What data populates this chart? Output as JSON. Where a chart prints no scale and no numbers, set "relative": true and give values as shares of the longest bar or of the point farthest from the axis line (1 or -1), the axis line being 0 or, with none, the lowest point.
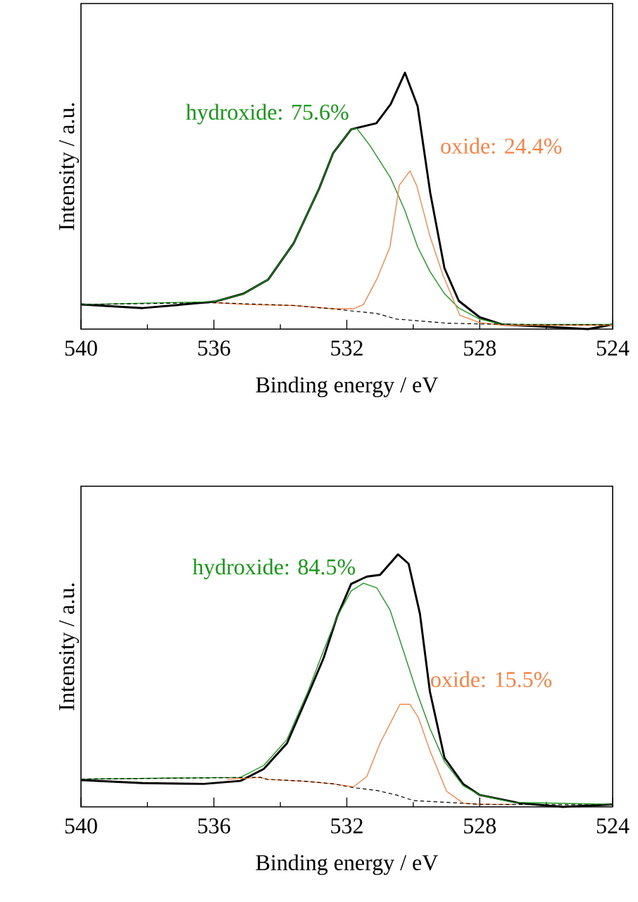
{
  "chart_data": [
    {
      "type": "line",
      "relative": true,
      "xlabel": "Binding energy / eV",
      "ylabel": "Intensity / a.u.",
      "xlim": [
        540,
        524
      ],
      "xticks": [
        540,
        {
          "value": 538,
          "label": null
        },
        536,
        {
          "value": 534,
          "label": null
        },
        532,
        {
          "value": 530,
          "label": null
        },
        528,
        {
          "value": 526,
          "label": null
        },
        524
      ],
      "marker": "none",
      "series": [
        {
          "color": "#000000",
          "line_style": "solid",
          "x": [
            540,
            538.14,
            535.98,
            535.11,
            534.36,
            533.6,
            532.84,
            532.41,
            531.87,
            531.11,
            530.68,
            530.25,
            529.87,
            529.49,
            529.06,
            528.63,
            528.0,
            527.33,
            526.25,
            524.74,
            524
          ],
          "values": [
            0.096,
            0.082,
            0.107,
            0.138,
            0.194,
            0.335,
            0.546,
            0.687,
            0.779,
            0.803,
            0.877,
            1.0,
            0.87,
            0.532,
            0.237,
            0.11,
            0.046,
            0.018,
            0.011,
            0.0,
            0.018
          ]
        },
        {
          "name": "hydroxide: 75.6%",
          "color": "#139a13",
          "line_style": "solid",
          "x": [
            540,
            536.0,
            535.1,
            534.36,
            533.6,
            532.84,
            532.41,
            531.87,
            531.7,
            531.3,
            530.68,
            530.25,
            529.87,
            529.49,
            529.06,
            528.63,
            528.0,
            527.3,
            524
          ],
          "values": [
            0.096,
            0.107,
            0.138,
            0.194,
            0.335,
            0.546,
            0.687,
            0.779,
            0.783,
            0.715,
            0.589,
            0.462,
            0.321,
            0.223,
            0.138,
            0.082,
            0.039,
            0.018,
            0.018
          ]
        },
        {
          "name": "oxide: 24.4%",
          "color": "#ff8040",
          "line_style": "solid",
          "x": [
            536.0,
            535.0,
            533.6,
            532.4,
            531.8,
            531.5,
            531.1,
            530.7,
            530.42,
            530.1,
            529.9,
            529.5,
            529.1,
            528.6,
            528.0,
            527.3,
            524
          ],
          "values": [
            0.103,
            0.096,
            0.092,
            0.079,
            0.079,
            0.096,
            0.194,
            0.321,
            0.561,
            0.617,
            0.561,
            0.363,
            0.208,
            0.054,
            0.025,
            0.015,
            0.015
          ]
        },
        {
          "color": "#000000",
          "line_style": "dashed",
          "x": [
            540,
            536,
            533.6,
            532.4,
            531.8,
            531.1,
            530.5,
            530.1,
            529.0,
            528,
            526,
            524
          ],
          "values": [
            0.096,
            0.103,
            0.092,
            0.079,
            0.07,
            0.061,
            0.039,
            0.035,
            0.023,
            0.02,
            0.017,
            0.017
          ]
        }
      ]
    },
    {
      "type": "line",
      "relative": true,
      "xlabel": "Binding energy / eV",
      "ylabel": "Intensity / a.u.",
      "xlim": [
        540,
        524
      ],
      "xticks": [
        540,
        {
          "value": 538,
          "label": null
        },
        536,
        {
          "value": 534,
          "label": null
        },
        532,
        {
          "value": 530,
          "label": null
        },
        528,
        {
          "value": 526,
          "label": null
        },
        524
      ],
      "marker": "none",
      "series": [
        {
          "color": "#000000",
          "line_style": "solid",
          "x": [
            540,
            538.14,
            536.3,
            535.2,
            534.5,
            533.8,
            533.17,
            532.7,
            532.3,
            531.87,
            531.4,
            531.0,
            530.46,
            530.14,
            529.8,
            529.5,
            529.06,
            528.5,
            528,
            526.8,
            525.5,
            524
          ],
          "values": [
            0.106,
            0.094,
            0.091,
            0.103,
            0.15,
            0.252,
            0.443,
            0.589,
            0.751,
            0.883,
            0.912,
            0.919,
            1.0,
            0.963,
            0.765,
            0.457,
            0.194,
            0.091,
            0.047,
            0.015,
            0.0,
            0.01
          ]
        },
        {
          "name": "hydroxide: 84.5%",
          "color": "#139a13",
          "line_style": "solid",
          "x": [
            540,
            535.2,
            534.5,
            533.8,
            533.17,
            532.7,
            532.3,
            531.87,
            531.5,
            531.1,
            530.7,
            530.3,
            529.9,
            529.5,
            529.06,
            528.5,
            528,
            527,
            524
          ],
          "values": [
            0.11,
            0.117,
            0.164,
            0.267,
            0.457,
            0.619,
            0.751,
            0.855,
            0.886,
            0.868,
            0.78,
            0.619,
            0.457,
            0.311,
            0.179,
            0.084,
            0.047,
            0.018,
            0.01
          ]
        },
        {
          "name": "oxide: 15.5%",
          "color": "#ff8040",
          "line_style": "solid",
          "x": [
            535.6,
            534.6,
            534.4,
            533.2,
            532.4,
            531.8,
            531.4,
            531.0,
            530.4,
            530.1,
            529.85,
            529.5,
            529.0,
            528.5,
            528,
            527
          ],
          "values": [
            0.109,
            0.117,
            0.109,
            0.101,
            0.091,
            0.079,
            0.12,
            0.252,
            0.406,
            0.406,
            0.355,
            0.223,
            0.062,
            0.015,
            0.01,
            0.01
          ]
        },
        {
          "color": "#000000",
          "line_style": "dashed",
          "x": [
            540,
            534.6,
            534.4,
            533.2,
            532.4,
            531.8,
            531.1,
            530.5,
            530.0,
            529,
            528,
            524
          ],
          "values": [
            0.11,
            0.117,
            0.109,
            0.101,
            0.091,
            0.076,
            0.065,
            0.047,
            0.025,
            0.018,
            0.01,
            0.008
          ]
        }
      ]
    }
  ]
}
